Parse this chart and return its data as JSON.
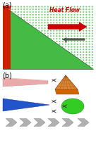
{
  "title_a": "(a)",
  "title_b": "(b)",
  "heat_flow_text": "Heat Flow",
  "bg_color": "#ffffff",
  "red_color": "#cc2200",
  "green_color": "#44bb44",
  "pink_color": "#e8aaaa",
  "blue_color": "#2255cc",
  "orange_color": "#cc6600",
  "bright_green": "#33cc22",
  "gray_color": "#b0b0b0",
  "arrow_color": "#cc0000",
  "dark_gray": "#888888"
}
